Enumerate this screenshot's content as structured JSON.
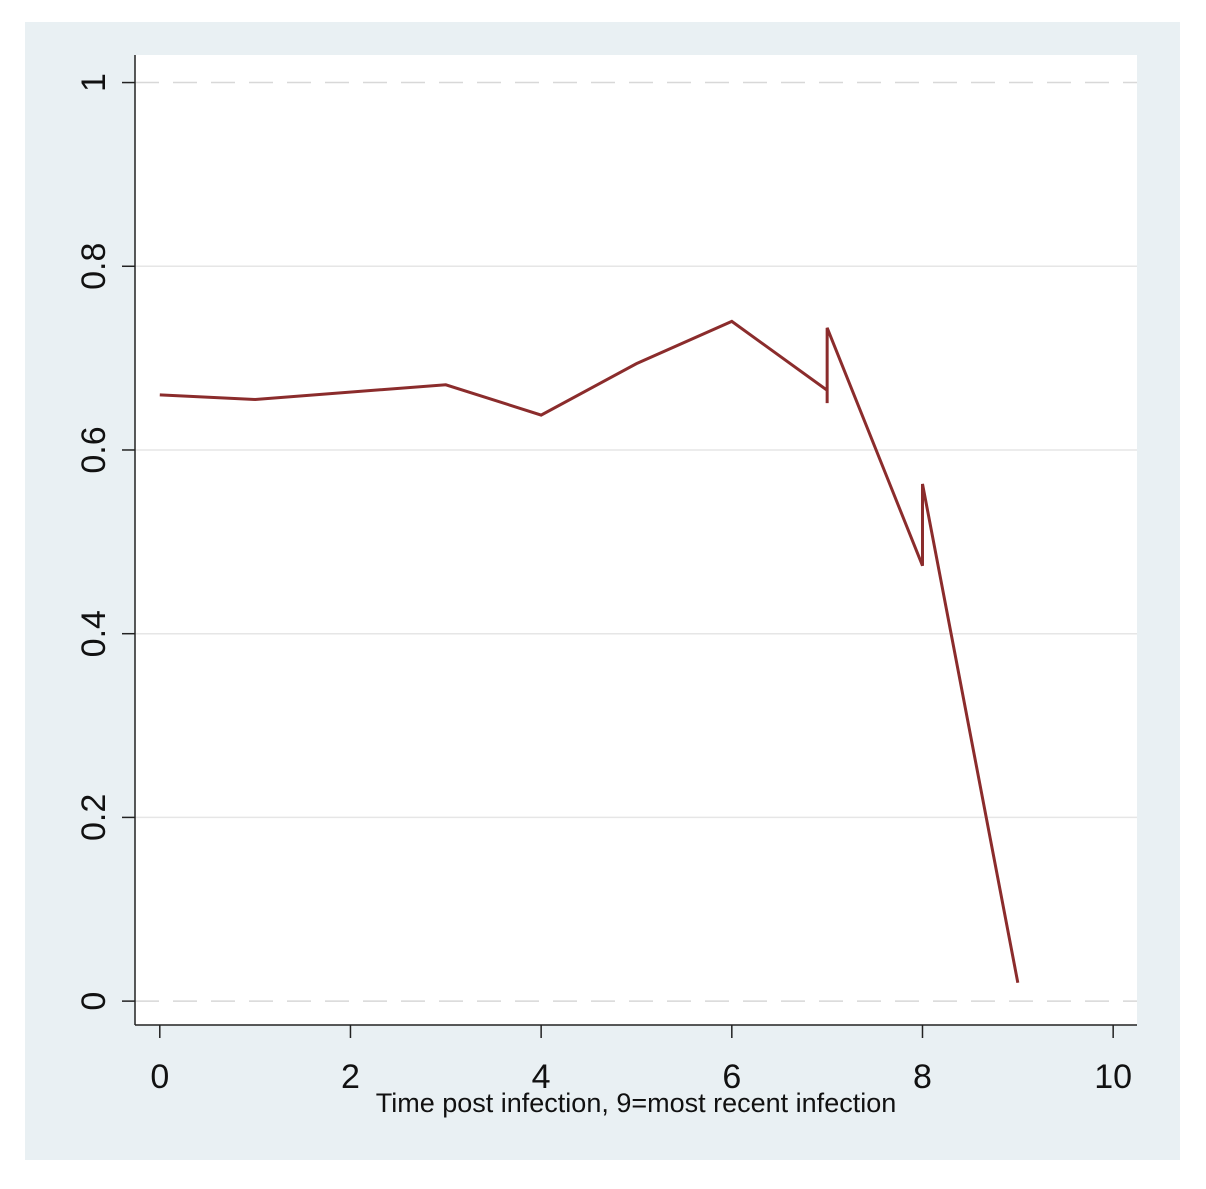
{
  "chart_data": {
    "type": "line",
    "x_label": "Time post infection, 9=most recent infection",
    "x": [
      0,
      1,
      3,
      4,
      5,
      6,
      7,
      7,
      7,
      8,
      8,
      9
    ],
    "values": [
      0.66,
      0.655,
      0.671,
      0.638,
      0.694,
      0.74,
      0.665,
      0.651,
      0.733,
      0.474,
      0.563,
      0.02
    ],
    "color": "#8b2c2c",
    "xlim": [
      -0.26,
      10.25
    ],
    "xticks": [
      0,
      2,
      4,
      6,
      8,
      10
    ],
    "ylim": [
      -0.026,
      1.03
    ],
    "yticks": [
      0,
      0.2,
      0.4,
      0.6,
      0.8,
      1
    ],
    "grid": true
  }
}
